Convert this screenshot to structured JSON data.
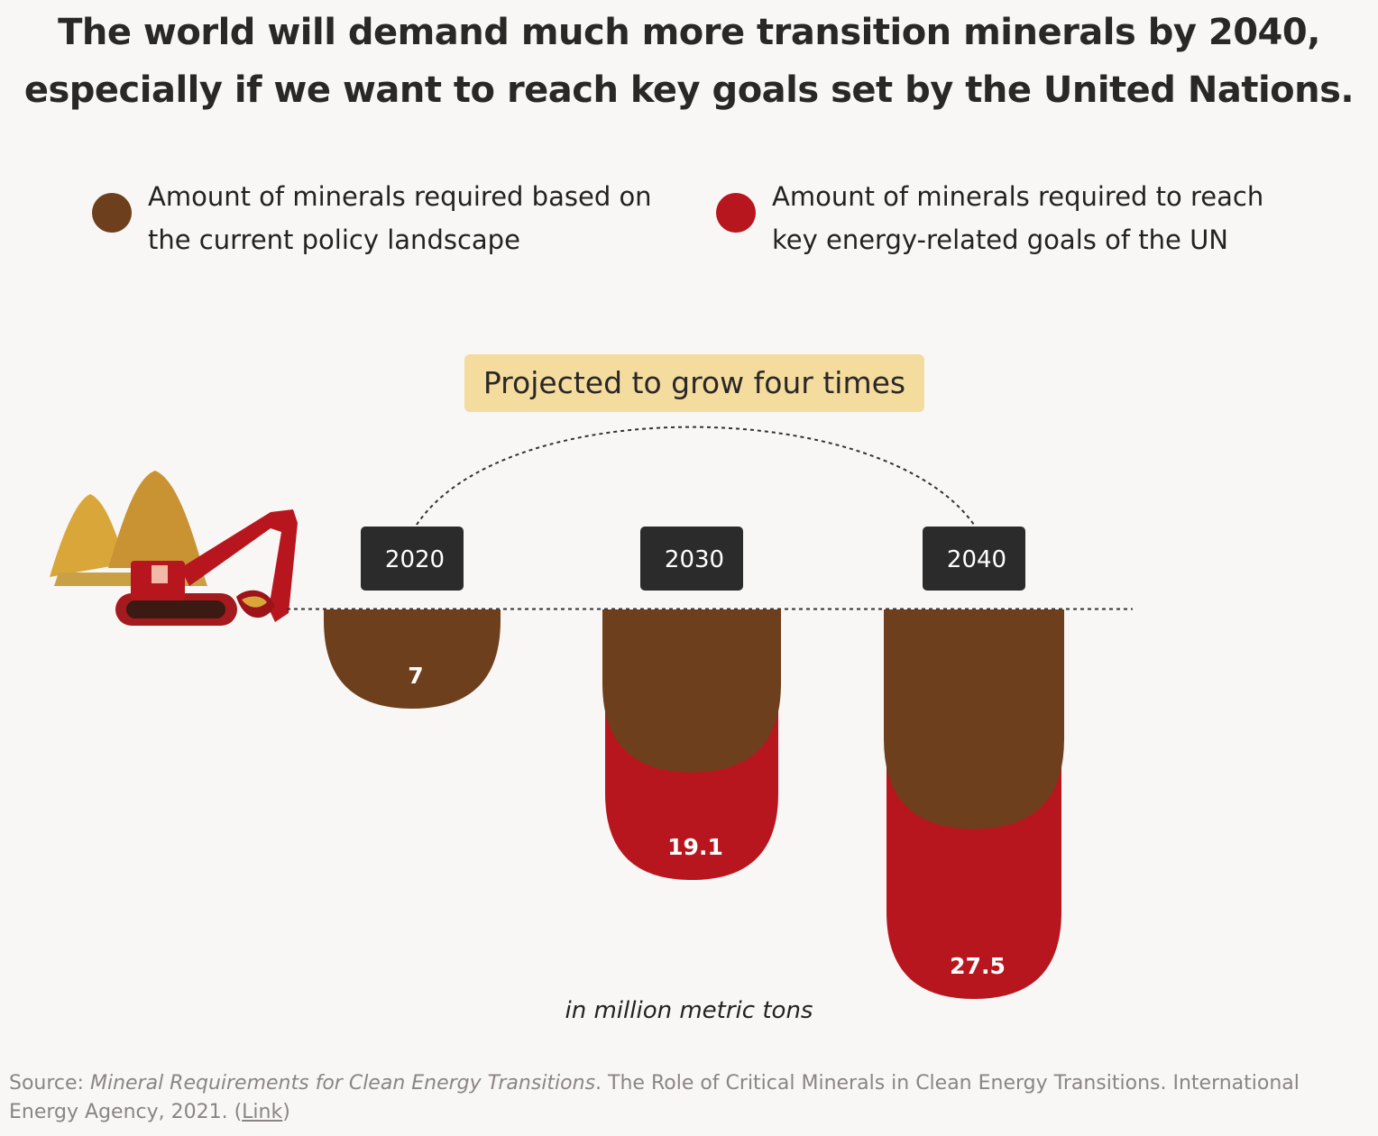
{
  "title": {
    "line1": "The world will demand much more transition minerals by 2040,",
    "line2": "especially if we want to reach key goals set by the United Nations."
  },
  "legend": {
    "current": {
      "line1": "Amount of minerals required based on",
      "line2": "the current policy landscape",
      "color": "#6e3f1c"
    },
    "un": {
      "line1": "Amount of minerals required to reach",
      "line2": "key energy-related goals of the UN",
      "color": "#b8161e"
    }
  },
  "callout": "Projected to grow four times",
  "unit_label": "in million metric tons",
  "source": {
    "prefix": "Source: ",
    "italic": "Mineral Requirements for Clean Energy Transitions",
    "rest": ". The Role of Critical Minerals in Clean Energy Transitions. International Energy Agency, 2021. (",
    "link": "Link",
    "suffix": ")"
  },
  "chart_data": {
    "type": "bar",
    "categories": [
      "2020",
      "2030",
      "2040"
    ],
    "values": [
      7,
      19.1,
      27.5
    ],
    "value_labels": [
      "7",
      "19.1",
      "27.5"
    ],
    "current_policy_share": [
      7,
      11.5,
      15.5
    ],
    "title": "",
    "xlabel": "",
    "ylabel": "in million metric tons",
    "ylim": [
      0,
      27.5
    ],
    "colors": {
      "current": "#6e3f1c",
      "un": "#b8161e",
      "year_tag": "#2b2b2b"
    }
  }
}
